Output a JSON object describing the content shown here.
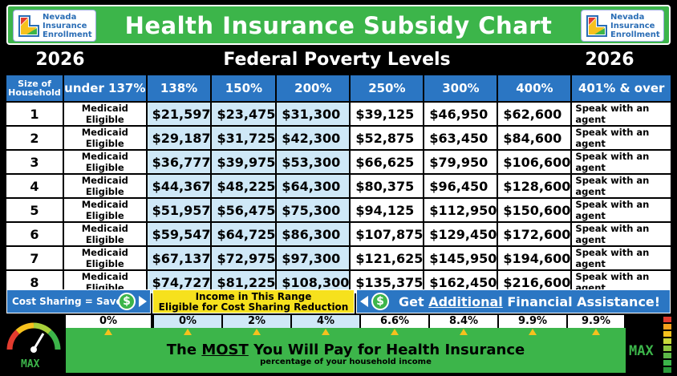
{
  "header": {
    "title": "Health Insurance Subsidy Chart",
    "logo_text": "Nevada Insurance Enrollment",
    "year_left": "2026",
    "subtitle": "Federal Poverty Levels",
    "year_right": "2026"
  },
  "table": {
    "size_header": "Size of Household",
    "columns": [
      "under 137%",
      "138%",
      "150%",
      "200%",
      "250%",
      "300%",
      "400%",
      "401% & over"
    ],
    "rows": [
      {
        "size": "1",
        "cells": [
          "Medicaid Eligible",
          "$21,597",
          "$23,475",
          "$31,300",
          "$39,125",
          "$46,950",
          "$62,600",
          "Speak with an agent"
        ]
      },
      {
        "size": "2",
        "cells": [
          "Medicaid Eligible",
          "$29,187",
          "$31,725",
          "$42,300",
          "$52,875",
          "$63,450",
          "$84,600",
          "Speak with an agent"
        ]
      },
      {
        "size": "3",
        "cells": [
          "Medicaid Eligible",
          "$36,777",
          "$39,975",
          "$53,300",
          "$66,625",
          "$79,950",
          "$106,600",
          "Speak with an agent"
        ]
      },
      {
        "size": "4",
        "cells": [
          "Medicaid Eligible",
          "$44,367",
          "$48,225",
          "$64,300",
          "$80,375",
          "$96,450",
          "$128,600",
          "Speak with an agent"
        ]
      },
      {
        "size": "5",
        "cells": [
          "Medicaid Eligible",
          "$51,957",
          "$56,475",
          "$75,300",
          "$94,125",
          "$112,950",
          "$150,600",
          "Speak with an agent"
        ]
      },
      {
        "size": "6",
        "cells": [
          "Medicaid Eligible",
          "$59,547",
          "$64,725",
          "$86,300",
          "$107,875",
          "$129,450",
          "$172,600",
          "Speak with an agent"
        ]
      },
      {
        "size": "7",
        "cells": [
          "Medicaid Eligible",
          "$67,137",
          "$72,975",
          "$97,300",
          "$121,625",
          "$145,950",
          "$194,600",
          "Speak with an agent"
        ]
      },
      {
        "size": "8",
        "cells": [
          "Medicaid Eligible",
          "$74,727",
          "$81,225",
          "$108,300",
          "$135,375",
          "$162,450",
          "$216,600",
          "Speak with an agent"
        ]
      }
    ]
  },
  "band": {
    "cost_sharing": "Cost Sharing = Save",
    "dollar": "$",
    "income_range_line1": "Income in This Range",
    "income_range_line2": "Eligible for Cost Sharing Reduction",
    "assist_pre": "Get ",
    "assist_underlined": "Additional",
    "assist_post": " Financial  Assistance!"
  },
  "percentages": [
    "0%",
    "0%",
    "2%",
    "4%",
    "6.6%",
    "8.4%",
    "9.9%",
    "9.9%"
  ],
  "footer": {
    "title_pre": "The ",
    "title_underlined": "MOST",
    "title_post": " You Will Pay for Health Insurance",
    "subtitle": "percentage of your household income",
    "max_left": "MAX",
    "max_right": "MAX"
  },
  "colors": {
    "green": "#3cb54a",
    "blue": "#2b76c3",
    "light_blue": "#cfe8f7",
    "yellow": "#f6e11d"
  }
}
